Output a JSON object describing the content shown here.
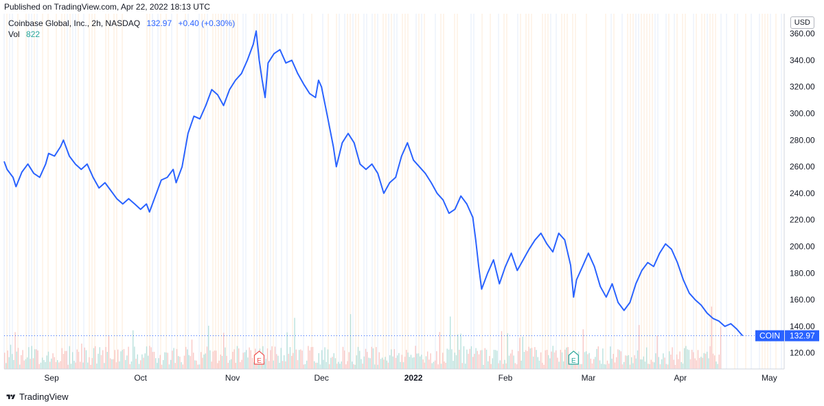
{
  "header": {
    "published": "Published on TradingView.com, Apr 22, 2022 18:13 UTC"
  },
  "legend": {
    "symbol": "Coinbase Global, Inc., 2h, NASDAQ",
    "last": "132.97",
    "change": "+0.40 (+0.30%)",
    "vol_label": "Vol",
    "vol_value": "822"
  },
  "currency": "USD",
  "price_label": {
    "ticker": "COIN",
    "value": "132.97"
  },
  "earnings_marker": "E",
  "footer": {
    "brand": "TradingView"
  },
  "colors": {
    "line": "#2962ff",
    "grid": "#f0f3fa",
    "price_tag": "#2962ff",
    "vol_up": "#26a69a",
    "vol_down": "#ef5350"
  },
  "chart_data": {
    "type": "line",
    "title": "Coinbase Global, Inc., 2h, NASDAQ",
    "xlabel": "",
    "ylabel": "",
    "ylim": [
      108,
      375
    ],
    "y_ticks": [
      120,
      140,
      160,
      180,
      200,
      220,
      240,
      260,
      280,
      300,
      320,
      340,
      360
    ],
    "x_ticks": [
      {
        "label": "Sep",
        "date": "2021-09-01"
      },
      {
        "label": "Oct",
        "date": "2021-10-01"
      },
      {
        "label": "Nov",
        "date": "2021-11-01"
      },
      {
        "label": "Dec",
        "date": "2021-12-01"
      },
      {
        "label": "2022",
        "date": "2022-01-01",
        "bold": true
      },
      {
        "label": "Feb",
        "date": "2022-02-01"
      },
      {
        "label": "Mar",
        "date": "2022-03-01"
      },
      {
        "label": "Apr",
        "date": "2022-04-01"
      },
      {
        "label": "May",
        "date": "2022-05-01"
      }
    ],
    "xlim": [
      "2021-08-16",
      "2022-05-06"
    ],
    "earnings_dates": [
      "2021-11-10",
      "2022-02-24"
    ],
    "last_value": 132.97,
    "series": [
      {
        "name": "COIN",
        "points": [
          [
            "2021-08-16",
            264
          ],
          [
            "2021-08-17",
            258
          ],
          [
            "2021-08-19",
            252
          ],
          [
            "2021-08-20",
            245
          ],
          [
            "2021-08-22",
            256
          ],
          [
            "2021-08-24",
            262
          ],
          [
            "2021-08-26",
            255
          ],
          [
            "2021-08-28",
            252
          ],
          [
            "2021-08-30",
            262
          ],
          [
            "2021-08-31",
            270
          ],
          [
            "2021-09-02",
            268
          ],
          [
            "2021-09-04",
            275
          ],
          [
            "2021-09-05",
            280
          ],
          [
            "2021-09-07",
            268
          ],
          [
            "2021-09-09",
            262
          ],
          [
            "2021-09-11",
            258
          ],
          [
            "2021-09-13",
            262
          ],
          [
            "2021-09-15",
            252
          ],
          [
            "2021-09-17",
            244
          ],
          [
            "2021-09-19",
            248
          ],
          [
            "2021-09-21",
            242
          ],
          [
            "2021-09-23",
            236
          ],
          [
            "2021-09-25",
            232
          ],
          [
            "2021-09-27",
            236
          ],
          [
            "2021-09-29",
            232
          ],
          [
            "2021-10-01",
            228
          ],
          [
            "2021-10-03",
            232
          ],
          [
            "2021-10-04",
            226
          ],
          [
            "2021-10-06",
            238
          ],
          [
            "2021-10-08",
            250
          ],
          [
            "2021-10-10",
            252
          ],
          [
            "2021-10-12",
            258
          ],
          [
            "2021-10-13",
            248
          ],
          [
            "2021-10-15",
            260
          ],
          [
            "2021-10-17",
            285
          ],
          [
            "2021-10-19",
            298
          ],
          [
            "2021-10-21",
            296
          ],
          [
            "2021-10-23",
            306
          ],
          [
            "2021-10-25",
            318
          ],
          [
            "2021-10-27",
            314
          ],
          [
            "2021-10-29",
            306
          ],
          [
            "2021-10-31",
            318
          ],
          [
            "2021-11-02",
            325
          ],
          [
            "2021-11-04",
            330
          ],
          [
            "2021-11-06",
            340
          ],
          [
            "2021-11-08",
            352
          ],
          [
            "2021-11-09",
            362
          ],
          [
            "2021-11-10",
            340
          ],
          [
            "2021-11-11",
            325
          ],
          [
            "2021-11-12",
            312
          ],
          [
            "2021-11-13",
            338
          ],
          [
            "2021-11-15",
            345
          ],
          [
            "2021-11-17",
            348
          ],
          [
            "2021-11-19",
            338
          ],
          [
            "2021-11-21",
            340
          ],
          [
            "2021-11-23",
            330
          ],
          [
            "2021-11-25",
            322
          ],
          [
            "2021-11-27",
            315
          ],
          [
            "2021-11-29",
            312
          ],
          [
            "2021-11-30",
            325
          ],
          [
            "2021-12-01",
            320
          ],
          [
            "2021-12-03",
            298
          ],
          [
            "2021-12-05",
            275
          ],
          [
            "2021-12-06",
            260
          ],
          [
            "2021-12-08",
            278
          ],
          [
            "2021-12-10",
            285
          ],
          [
            "2021-12-12",
            278
          ],
          [
            "2021-12-14",
            262
          ],
          [
            "2021-12-16",
            258
          ],
          [
            "2021-12-18",
            262
          ],
          [
            "2021-12-20",
            255
          ],
          [
            "2021-12-22",
            240
          ],
          [
            "2021-12-24",
            248
          ],
          [
            "2021-12-26",
            252
          ],
          [
            "2021-12-28",
            268
          ],
          [
            "2021-12-30",
            278
          ],
          [
            "2022-01-01",
            265
          ],
          [
            "2022-01-03",
            260
          ],
          [
            "2022-01-05",
            255
          ],
          [
            "2022-01-07",
            248
          ],
          [
            "2022-01-09",
            240
          ],
          [
            "2022-01-11",
            235
          ],
          [
            "2022-01-13",
            225
          ],
          [
            "2022-01-15",
            228
          ],
          [
            "2022-01-17",
            238
          ],
          [
            "2022-01-19",
            232
          ],
          [
            "2022-01-21",
            222
          ],
          [
            "2022-01-22",
            205
          ],
          [
            "2022-01-23",
            185
          ],
          [
            "2022-01-24",
            168
          ],
          [
            "2022-01-26",
            180
          ],
          [
            "2022-01-28",
            190
          ],
          [
            "2022-01-30",
            172
          ],
          [
            "2022-02-01",
            185
          ],
          [
            "2022-02-03",
            195
          ],
          [
            "2022-02-05",
            182
          ],
          [
            "2022-02-07",
            190
          ],
          [
            "2022-02-09",
            198
          ],
          [
            "2022-02-11",
            205
          ],
          [
            "2022-02-13",
            210
          ],
          [
            "2022-02-15",
            202
          ],
          [
            "2022-02-17",
            196
          ],
          [
            "2022-02-19",
            210
          ],
          [
            "2022-02-21",
            205
          ],
          [
            "2022-02-23",
            186
          ],
          [
            "2022-02-24",
            162
          ],
          [
            "2022-02-25",
            175
          ],
          [
            "2022-02-27",
            185
          ],
          [
            "2022-03-01",
            195
          ],
          [
            "2022-03-03",
            185
          ],
          [
            "2022-03-05",
            170
          ],
          [
            "2022-03-07",
            162
          ],
          [
            "2022-03-09",
            172
          ],
          [
            "2022-03-11",
            158
          ],
          [
            "2022-03-13",
            152
          ],
          [
            "2022-03-15",
            158
          ],
          [
            "2022-03-17",
            172
          ],
          [
            "2022-03-19",
            182
          ],
          [
            "2022-03-21",
            188
          ],
          [
            "2022-03-23",
            185
          ],
          [
            "2022-03-25",
            195
          ],
          [
            "2022-03-27",
            202
          ],
          [
            "2022-03-29",
            198
          ],
          [
            "2022-03-31",
            188
          ],
          [
            "2022-04-02",
            175
          ],
          [
            "2022-04-04",
            165
          ],
          [
            "2022-04-06",
            160
          ],
          [
            "2022-04-08",
            156
          ],
          [
            "2022-04-10",
            150
          ],
          [
            "2022-04-12",
            146
          ],
          [
            "2022-04-14",
            144
          ],
          [
            "2022-04-16",
            140
          ],
          [
            "2022-04-18",
            142
          ],
          [
            "2022-04-20",
            138
          ],
          [
            "2022-04-22",
            132.97
          ]
        ]
      }
    ]
  }
}
